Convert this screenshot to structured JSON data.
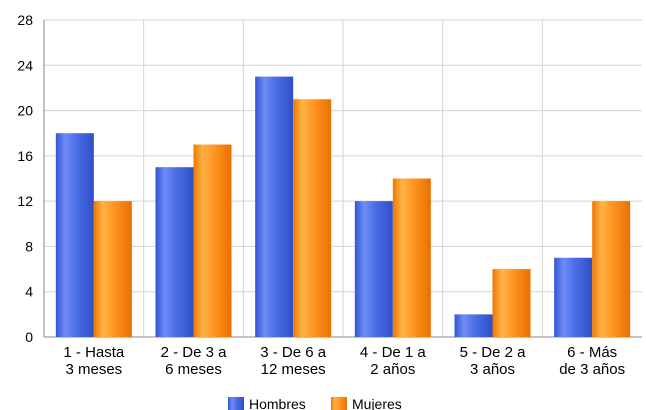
{
  "chart_data": {
    "type": "bar",
    "title": "",
    "xlabel": "",
    "ylabel": "",
    "ylim": [
      0,
      28
    ],
    "yticks": [
      0,
      4,
      8,
      12,
      16,
      20,
      24,
      28
    ],
    "grid": true,
    "legend_position": "bottom",
    "categories": [
      [
        "1 - Hasta",
        "3 meses"
      ],
      [
        "2 - De 3 a",
        "6 meses"
      ],
      [
        "3 - De 6 a",
        "12 meses"
      ],
      [
        "4 - De 1 a",
        "2 años"
      ],
      [
        "5 - De 2 a",
        "3 años"
      ],
      [
        "6 - Más",
        "de 3 años"
      ]
    ],
    "series": [
      {
        "name": "Hombres",
        "color": "#3f64e0",
        "values": [
          18,
          15,
          23,
          12,
          2,
          7
        ]
      },
      {
        "name": "Mujeres",
        "color": "#ff8c0a",
        "values": [
          12,
          17,
          21,
          14,
          6,
          12
        ]
      }
    ]
  }
}
